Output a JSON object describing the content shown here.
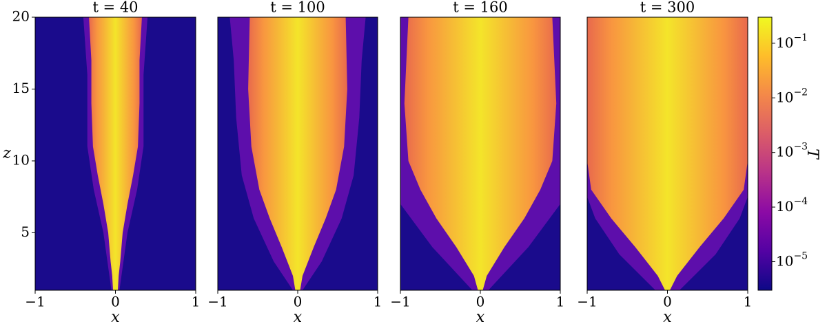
{
  "chart_data": [
    {
      "type": "heatmap",
      "title": "t = 40",
      "xlabel": "x",
      "ylabel": "z",
      "xlim": [
        -1,
        1
      ],
      "xticks": [
        {
          "value": -1,
          "label": "−1"
        },
        0,
        1
      ],
      "ylim": [
        1,
        20
      ],
      "yticks": [
        5,
        10,
        15,
        20
      ]
    },
    {
      "type": "heatmap",
      "title": "t = 100",
      "xlabel": "x",
      "xlim": [
        -1,
        1
      ],
      "xticks": [
        {
          "value": -1,
          "label": "−1"
        },
        0,
        1
      ],
      "ylim": [
        1,
        20
      ]
    },
    {
      "type": "heatmap",
      "title": "t = 160",
      "xlabel": "x",
      "xlim": [
        -1,
        1
      ],
      "xticks": [
        {
          "value": -1,
          "label": "−1"
        },
        0,
        1
      ],
      "ylim": [
        1,
        20
      ]
    },
    {
      "type": "heatmap",
      "title": "t = 300",
      "xlabel": "x",
      "xlim": [
        -1,
        1
      ],
      "xticks": [
        {
          "value": -1,
          "label": "−1"
        },
        0,
        1
      ],
      "ylim": [
        1,
        20
      ]
    },
    {
      "type": "colorbar",
      "label": "T",
      "log_scale": true,
      "colormap": "plasma",
      "ylim": [
        3e-06,
        0.3
      ],
      "yticks": [
        {
          "value": 1e-05,
          "label": "10−5"
        },
        {
          "value": 0.0001,
          "label": "10−4"
        },
        {
          "value": 0.001,
          "label": "10−3"
        },
        {
          "value": 0.01,
          "label": "10−2"
        },
        {
          "value": 0.1,
          "label": "10−1"
        }
      ]
    }
  ]
}
